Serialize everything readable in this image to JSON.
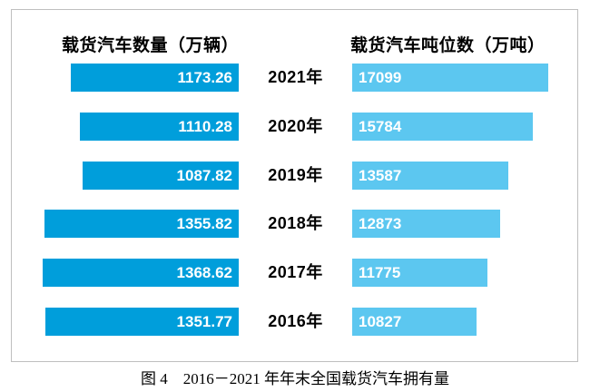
{
  "headers": {
    "left": "载货汽车数量（万辆）",
    "right": "载货汽车吨位数（万吨）"
  },
  "caption": "图 4　2016－2021 年年末全国载货汽车拥有量",
  "colors": {
    "left_bar": "#009EDB",
    "right_bar": "#5CC7F0",
    "bar_value_text": "#ffffff",
    "frame_border": "#bfbfbf"
  },
  "chart_data": {
    "type": "bar",
    "variant": "tornado",
    "orientation": "horizontal",
    "categories": [
      "2021年",
      "2020年",
      "2019年",
      "2018年",
      "2017年",
      "2016年"
    ],
    "series": [
      {
        "name": "载货汽车数量（万辆）",
        "side": "left",
        "color": "#009EDB",
        "values": [
          1173.26,
          1110.28,
          1087.82,
          1355.82,
          1368.62,
          1351.77
        ]
      },
      {
        "name": "载货汽车吨位数（万吨）",
        "side": "right",
        "color": "#5CC7F0",
        "values": [
          17099,
          15784,
          13587,
          12873,
          11775,
          10827
        ]
      }
    ],
    "title": "图 4　2016－2021 年年末全国载货汽车拥有量",
    "value_labels": "inside-bar",
    "axes_visible": false,
    "grid": false,
    "legend_position": "column-headers"
  }
}
